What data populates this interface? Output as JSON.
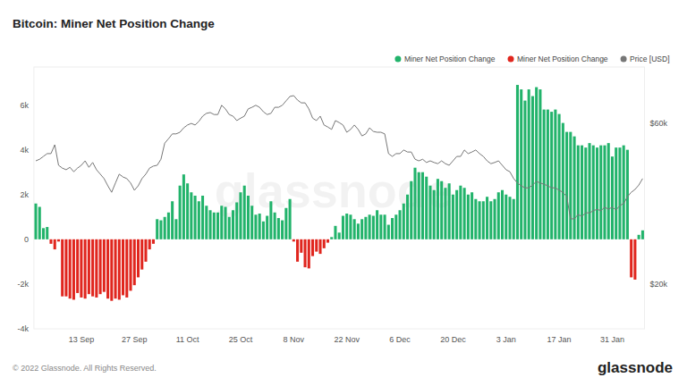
{
  "chart_data": {
    "type": "bar",
    "title": "Bitcoin: Miner Net Position Change",
    "footer": "© 2022 Glassnode. All Rights Reserved.",
    "logo": "glassnode",
    "watermark": "glassnode",
    "categories": [
      null,
      null,
      null,
      null,
      null,
      null,
      null,
      null,
      null,
      null,
      null,
      null,
      "13 Sep",
      null,
      null,
      null,
      null,
      null,
      null,
      null,
      null,
      null,
      null,
      null,
      null,
      null,
      "27 Sep",
      null,
      null,
      null,
      null,
      null,
      null,
      null,
      null,
      null,
      null,
      null,
      null,
      null,
      "11 Oct",
      null,
      null,
      null,
      null,
      null,
      null,
      null,
      null,
      null,
      null,
      null,
      null,
      null,
      "25 Oct",
      null,
      null,
      null,
      null,
      null,
      null,
      null,
      null,
      null,
      null,
      null,
      null,
      null,
      "8 Nov",
      null,
      null,
      null,
      null,
      null,
      null,
      null,
      null,
      null,
      null,
      null,
      null,
      null,
      "22 Nov",
      null,
      null,
      null,
      null,
      null,
      null,
      null,
      null,
      null,
      null,
      null,
      null,
      null,
      "6 Dec",
      null,
      null,
      null,
      null,
      null,
      null,
      null,
      null,
      null,
      null,
      null,
      null,
      null,
      "20 Dec",
      null,
      null,
      null,
      null,
      null,
      null,
      null,
      null,
      null,
      null,
      null,
      null,
      null,
      "3 Jan",
      null,
      null,
      null,
      null,
      null,
      null,
      null,
      null,
      null,
      null,
      null,
      null,
      null,
      "17 Jan",
      null,
      null,
      null,
      null,
      null,
      null,
      null,
      null,
      null,
      null,
      null,
      null,
      null,
      "31 Jan",
      null,
      null,
      null,
      null,
      null,
      null,
      null,
      null
    ],
    "series": [
      {
        "name": "Miner Net Position Change",
        "color": "#22b36b",
        "values": [
          1600,
          1450,
          500,
          550,
          null,
          null,
          null,
          null,
          null,
          null,
          null,
          null,
          null,
          null,
          null,
          null,
          null,
          null,
          null,
          null,
          null,
          null,
          null,
          null,
          null,
          null,
          null,
          null,
          null,
          null,
          null,
          null,
          900,
          850,
          1000,
          1200,
          1700,
          900,
          2400,
          2900,
          2500,
          2100,
          1950,
          1700,
          1950,
          1500,
          1300,
          1200,
          1200,
          1500,
          1450,
          1000,
          1300,
          1650,
          2100,
          2400,
          1950,
          1500,
          1100,
          1150,
          800,
          1050,
          1700,
          1200,
          950,
          850,
          1400,
          1800,
          null,
          null,
          null,
          null,
          null,
          null,
          null,
          null,
          null,
          null,
          100,
          600,
          300,
          1050,
          1150,
          1100,
          900,
          700,
          900,
          1000,
          1100,
          1050,
          1300,
          1100,
          1100,
          650,
          950,
          1100,
          1300,
          1600,
          2000,
          2600,
          3200,
          3000,
          3000,
          2800,
          2400,
          2200,
          2700,
          2600,
          2300,
          2500,
          2000,
          2200,
          2400,
          2300,
          2000,
          2100,
          1800,
          1700,
          1700,
          1900,
          1700,
          1800,
          2100,
          2200,
          2000,
          1900,
          1800,
          6900,
          6700,
          6200,
          6700,
          6400,
          6800,
          6700,
          5800,
          5800,
          5700,
          5800,
          5600,
          5200,
          4800,
          4800,
          4600,
          4200,
          4200,
          4100,
          4300,
          4200,
          4100,
          4200,
          4200,
          4300,
          3700,
          4100,
          4100,
          4200,
          4000,
          null,
          null,
          200,
          400
        ]
      },
      {
        "name": "Miner Net Position Change",
        "color": "#e0261e",
        "values": [
          null,
          null,
          null,
          null,
          -200,
          -450,
          -100,
          -2550,
          -2550,
          -2650,
          -2700,
          -2400,
          -2600,
          -2650,
          -2450,
          -2550,
          -2600,
          -2450,
          -2350,
          -2650,
          -2750,
          -2650,
          -2700,
          -2500,
          -2600,
          -2300,
          -2050,
          -1700,
          -1350,
          -1000,
          -450,
          -200,
          null,
          null,
          null,
          null,
          null,
          null,
          null,
          null,
          null,
          null,
          null,
          null,
          null,
          null,
          null,
          null,
          null,
          null,
          null,
          null,
          null,
          null,
          null,
          null,
          null,
          null,
          null,
          null,
          null,
          null,
          null,
          null,
          null,
          null,
          null,
          null,
          -100,
          -1000,
          -600,
          -1250,
          -1300,
          -750,
          -550,
          -650,
          -400,
          -150,
          null,
          null,
          null,
          null,
          null,
          null,
          null,
          null,
          null,
          null,
          null,
          null,
          null,
          null,
          null,
          null,
          null,
          null,
          null,
          null,
          null,
          null,
          null,
          null,
          null,
          null,
          null,
          null,
          null,
          null,
          null,
          null,
          null,
          null,
          null,
          null,
          null,
          null,
          null,
          null,
          null,
          null,
          null,
          null,
          null,
          null,
          null,
          null,
          null,
          null,
          null,
          null,
          null,
          null,
          null,
          null,
          null,
          null,
          null,
          null,
          null,
          null,
          null,
          null,
          null,
          null,
          null,
          null,
          null,
          null,
          null,
          null,
          null,
          null,
          null,
          null,
          null,
          null,
          null,
          -1700,
          -1800,
          null,
          null
        ]
      },
      {
        "name": "Price [USD]",
        "color": "#777777",
        "type": "line",
        "axis": "y2",
        "values": [
          50700,
          51100,
          51800,
          52500,
          52500,
          54700,
          49600,
          48900,
          48500,
          49100,
          48000,
          48900,
          49600,
          50700,
          49100,
          50300,
          48500,
          47400,
          46300,
          44500,
          42900,
          45200,
          47400,
          46700,
          46300,
          45200,
          43400,
          44500,
          46300,
          47400,
          48900,
          49400,
          49600,
          51100,
          55100,
          56200,
          57400,
          57400,
          57800,
          58900,
          59600,
          60000,
          59600,
          60500,
          61800,
          62500,
          62700,
          62200,
          62200,
          64500,
          63600,
          62200,
          61800,
          60700,
          61300,
          61800,
          63600,
          64000,
          64500,
          64000,
          62900,
          62200,
          62500,
          64000,
          64000,
          64500,
          65600,
          66700,
          66900,
          65800,
          65100,
          65100,
          63600,
          61300,
          60700,
          61800,
          59600,
          59100,
          58500,
          60700,
          60200,
          59600,
          57800,
          58500,
          59600,
          58500,
          56900,
          57400,
          58900,
          58000,
          57800,
          57800,
          57400,
          52500,
          51800,
          52500,
          52500,
          53400,
          52900,
          52900,
          51100,
          50700,
          51100,
          50300,
          50700,
          50300,
          50000,
          50700,
          50000,
          49600,
          50700,
          51800,
          51800,
          53400,
          52500,
          52900,
          53400,
          52500,
          51800,
          50700,
          50000,
          50300,
          50700,
          49600,
          48500,
          48000,
          46300,
          45200,
          44500,
          44000,
          44000,
          44700,
          45600,
          45200,
          44900,
          44500,
          44000,
          44000,
          43400,
          42900,
          41800,
          36300,
          36300,
          37400,
          36900,
          37800,
          37800,
          38300,
          38700,
          38300,
          39200,
          38700,
          39200,
          38500,
          39600,
          40100,
          41800,
          42900,
          43600,
          44700,
          46300
        ]
      }
    ],
    "ylim": [
      -4000,
      7700
    ],
    "yticks": [
      {
        "value": -4000,
        "label": "-4k"
      },
      {
        "value": -2000,
        "label": "-2k"
      },
      0,
      {
        "value": 2000,
        "label": "2k"
      },
      {
        "value": 4000,
        "label": "4k"
      },
      {
        "value": 6000,
        "label": "6k"
      }
    ],
    "y2lim": [
      9000,
      74000
    ],
    "y2ticks": [
      {
        "value": 20000,
        "label": "$20k"
      },
      {
        "value": 60000,
        "label": "$60k"
      }
    ],
    "grid": false,
    "legend": "top-right",
    "stacked": true
  }
}
